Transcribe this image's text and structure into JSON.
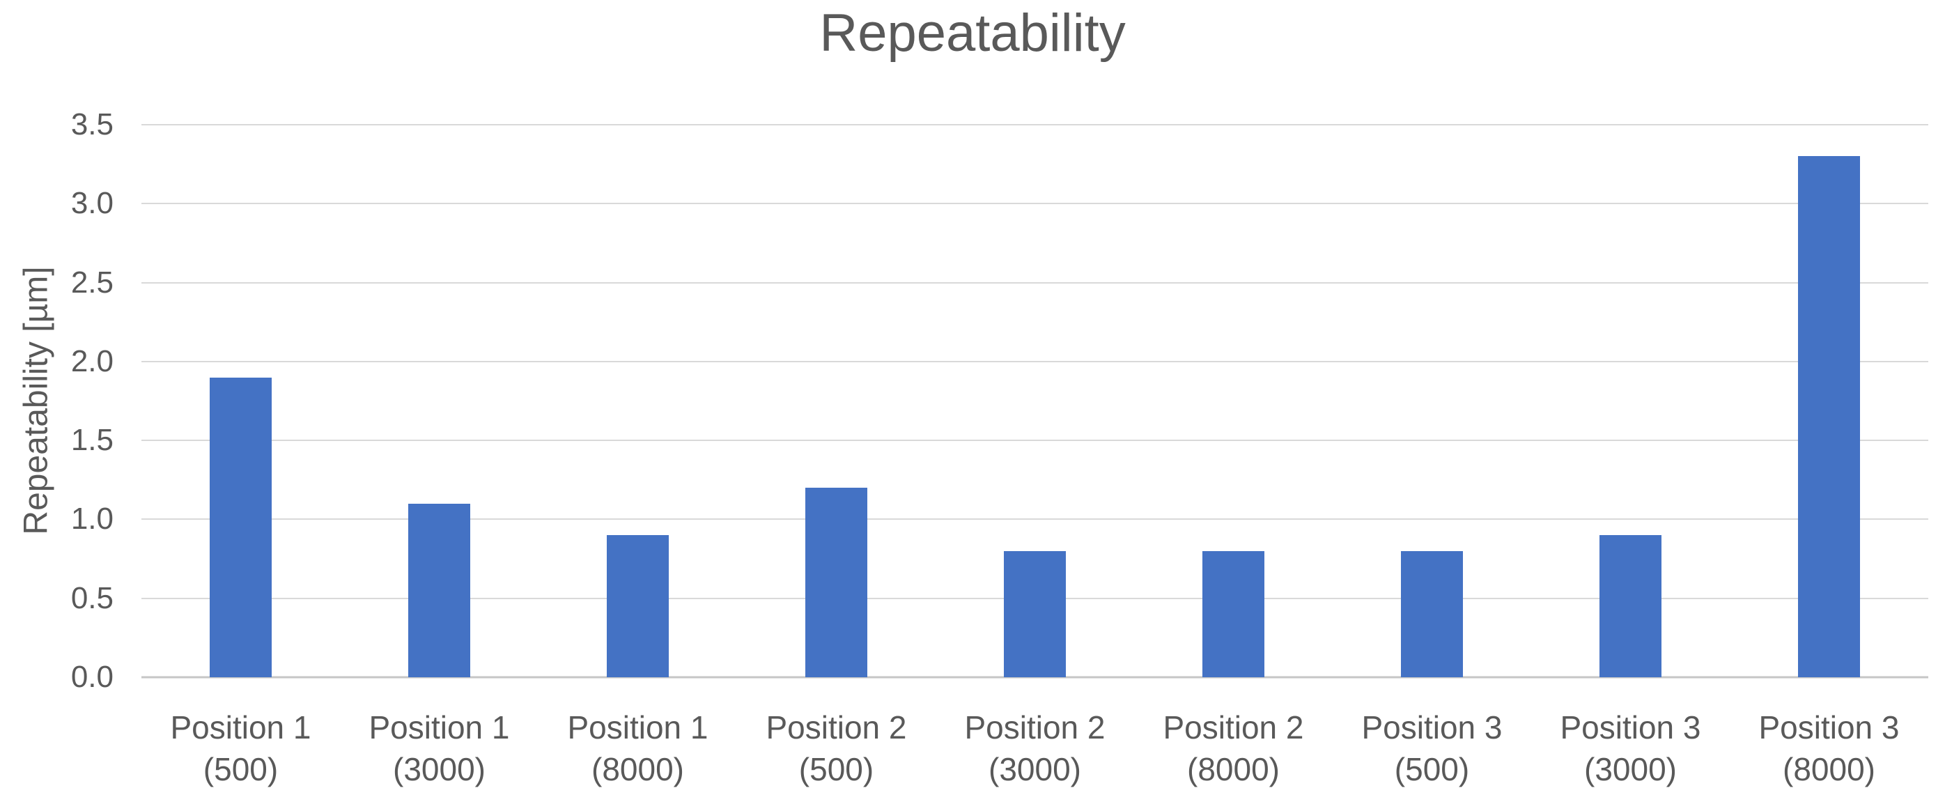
{
  "chart_data": {
    "type": "bar",
    "title": "Repeatability",
    "xlabel": "",
    "ylabel": "Repeatability [µm]",
    "ylim": [
      0,
      3.5
    ],
    "ytick_step": 0.5,
    "yticks_top_to_bottom": [
      "3.5",
      "3.0",
      "2.5",
      "2.0",
      "1.5",
      "1.0",
      "0.5",
      "0.0"
    ],
    "categories": [
      [
        "Position 1",
        "(500)"
      ],
      [
        "Position 1",
        "(3000)"
      ],
      [
        "Position 1",
        "(8000)"
      ],
      [
        "Position 2",
        "(500)"
      ],
      [
        "Position 2",
        "(3000)"
      ],
      [
        "Position 2",
        "(8000)"
      ],
      [
        "Position 3",
        "(500)"
      ],
      [
        "Position 3",
        "(3000)"
      ],
      [
        "Position 3",
        "(8000)"
      ]
    ],
    "values": [
      1.9,
      1.1,
      0.9,
      1.2,
      0.8,
      0.8,
      0.8,
      0.9,
      3.3
    ],
    "grid": true,
    "legend": "none",
    "colors": {
      "bar": "#4472C4",
      "gridline": "#D9D9D9",
      "axis_line": "#C6C6C6",
      "text": "#595959"
    }
  }
}
